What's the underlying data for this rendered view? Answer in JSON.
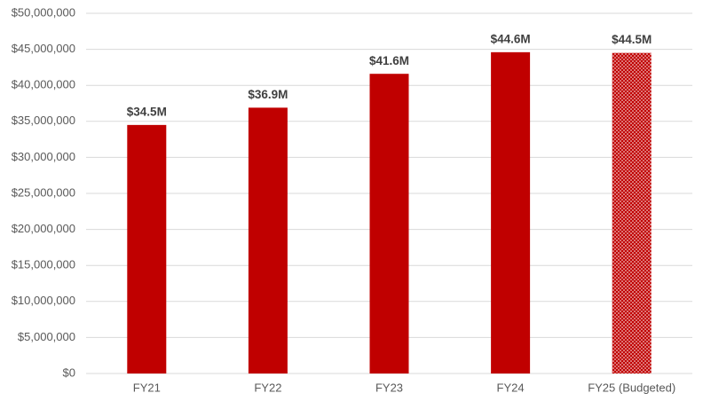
{
  "chart_data": {
    "type": "bar",
    "categories": [
      "FY21",
      "FY22",
      "FY23",
      "FY24",
      "FY25 (Budgeted)"
    ],
    "values": [
      34500000,
      36900000,
      41600000,
      44600000,
      44500000
    ],
    "value_labels": [
      "$34.5M",
      "$36.9M",
      "$41.6M",
      "$44.6M",
      "$44.5M"
    ],
    "color": "#c00000",
    "patterns": [
      "solid",
      "solid",
      "solid",
      "solid",
      "dotted"
    ],
    "ylim": [
      0,
      50000000
    ],
    "yticks": [
      {
        "value": 0,
        "label": "$0"
      },
      {
        "value": 5000000,
        "label": "$5,000,000"
      },
      {
        "value": 10000000,
        "label": "$10,000,000"
      },
      {
        "value": 15000000,
        "label": "$15,000,000"
      },
      {
        "value": 20000000,
        "label": "$20,000,000"
      },
      {
        "value": 25000000,
        "label": "$25,000,000"
      },
      {
        "value": 30000000,
        "label": "$30,000,000"
      },
      {
        "value": 35000000,
        "label": "$35,000,000"
      },
      {
        "value": 40000000,
        "label": "$40,000,000"
      },
      {
        "value": 45000000,
        "label": "$45,000,000"
      },
      {
        "value": 50000000,
        "label": "$50,000,000"
      }
    ],
    "grid": true
  }
}
